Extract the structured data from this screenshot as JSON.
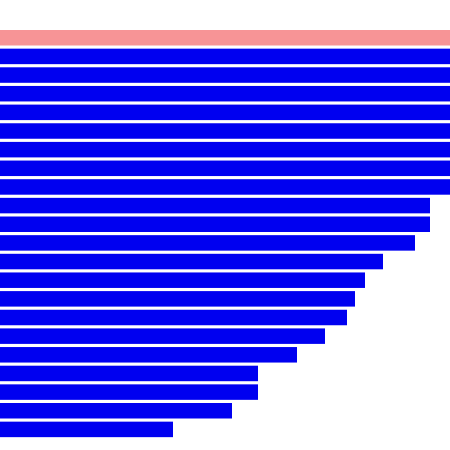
{
  "chart_data": {
    "type": "hbar",
    "values": [
      450,
      450,
      450,
      450,
      450,
      450,
      450,
      450,
      450,
      430,
      430,
      415,
      383,
      365,
      355,
      347,
      325,
      297,
      258,
      258,
      232,
      173
    ],
    "colors": [
      "#f79496",
      "#0000f0",
      "#0000f0",
      "#0000f0",
      "#0000f0",
      "#0000f0",
      "#0000f0",
      "#0000f0",
      "#0000f0",
      "#0000f0",
      "#0000f0",
      "#0000f0",
      "#0000f0",
      "#0000f0",
      "#0000f0",
      "#0000f0",
      "#0000f0",
      "#0000f0",
      "#0000f0",
      "#0000f0",
      "#0000f0",
      "#0000f0"
    ],
    "xlim": [
      0,
      450
    ]
  }
}
